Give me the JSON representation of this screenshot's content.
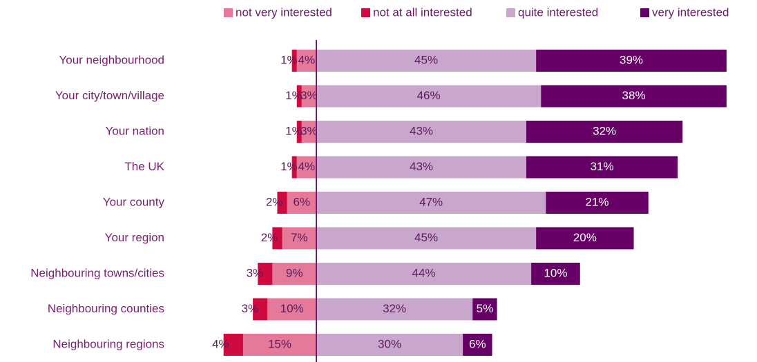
{
  "chart_data": {
    "type": "bar",
    "orientation": "horizontal",
    "categories": [
      "Your neighbourhood",
      "Your city/town/village",
      "Your nation",
      "The UK",
      "Your county",
      "Your region",
      "Neighbouring towns/cities",
      "Neighbouring counties",
      "Neighbouring regions"
    ],
    "series": [
      {
        "name": "not very interested",
        "color": "#e4799a",
        "side": "left",
        "values": [
          4,
          3,
          3,
          4,
          6,
          7,
          9,
          10,
          15
        ],
        "value_labels": [
          "4%",
          "3%",
          "3%",
          "4%",
          "6%",
          "7%",
          "9%",
          "10%",
          "15%"
        ]
      },
      {
        "name": "not at all interested",
        "color": "#cf0a3e",
        "side": "left",
        "values": [
          1,
          1,
          1,
          1,
          2,
          2,
          3,
          3,
          4
        ],
        "value_labels": [
          "1%",
          "1%",
          "1%",
          "1%",
          "2%",
          "2%",
          "3%",
          "3%",
          "4%"
        ]
      },
      {
        "name": "quite interested",
        "color": "#c9a7cc",
        "side": "right",
        "values": [
          45,
          46,
          43,
          43,
          47,
          45,
          44,
          32,
          30
        ],
        "value_labels": [
          "45%",
          "46%",
          "43%",
          "43%",
          "47%",
          "45%",
          "44%",
          "32%",
          "30%"
        ]
      },
      {
        "name": "very interested",
        "color": "#660066",
        "side": "right",
        "values": [
          39,
          38,
          32,
          31,
          21,
          20,
          10,
          5,
          6
        ],
        "value_labels": [
          "39%",
          "38%",
          "32%",
          "31%",
          "21%",
          "20%",
          "10%",
          "5%",
          "6%"
        ]
      }
    ],
    "legend": "top"
  }
}
